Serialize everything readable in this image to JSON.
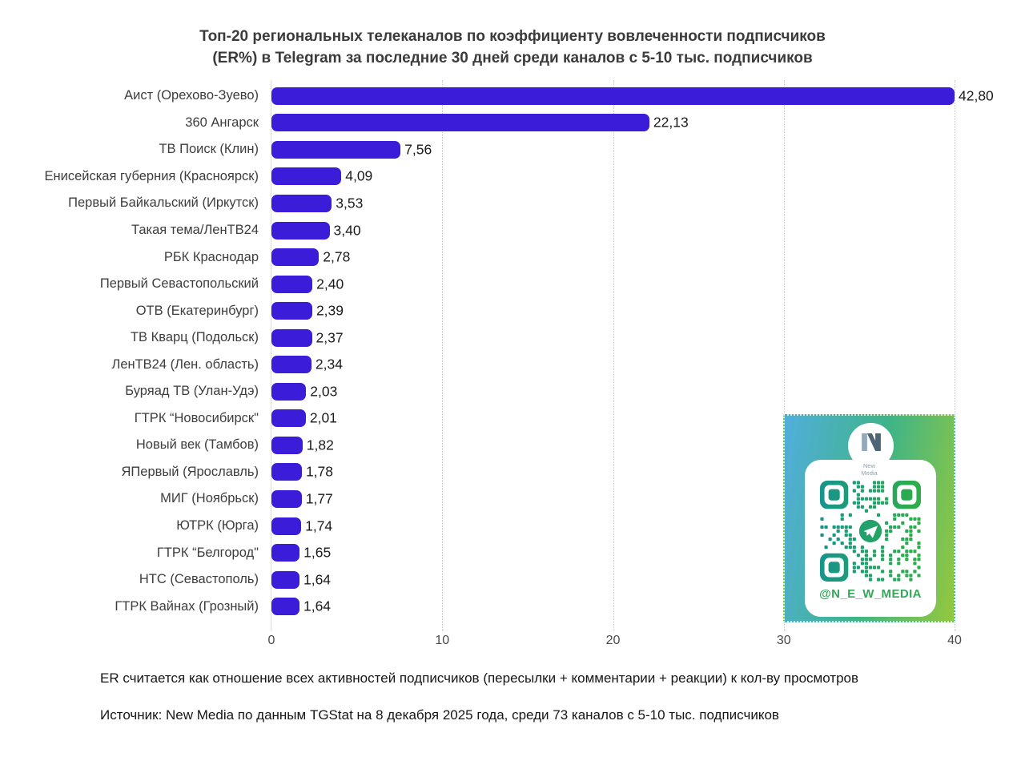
{
  "title": {
    "line1": "Топ-20 региональных телеканалов по коэффициенту вовлеченности подписчиков",
    "line2": "(ER%) в Telegram за последние 30 дней среди каналов с 5-10 тыс. подписчиков"
  },
  "chart_data": {
    "type": "bar",
    "orientation": "horizontal",
    "title": "Топ-20 региональных телеканалов по коэффициенту вовлеченности подписчиков (ER%) в Telegram за последние 30 дней среди каналов с 5-10 тыс. подписчиков",
    "categories": [
      "Аист (Орехово-Зуево)",
      "360 Ангарск",
      "ТВ Поиск (Клин)",
      "Енисейская губерния (Красноярск)",
      "Первый Байкальский (Иркутск)",
      "Такая тема/ЛенТВ24",
      "РБК Краснодар",
      "Первый Севастопольский",
      "ОТВ (Екатеринбург)",
      "ТВ Кварц (Подольск)",
      "ЛенТВ24 (Лен. область)",
      "Буряад ТВ (Улан-Удэ)",
      "ГТРК “Новосибирск\"",
      "Новый век (Тамбов)",
      "ЯПервый (Ярославль)",
      "МИГ (Ноябрьск)",
      "ЮТРК (Юрга)",
      "ГТРК “Белгород\"",
      "НТС (Севастополь)",
      "ГТРК Вайнах (Грозный)"
    ],
    "values": [
      42.8,
      22.13,
      7.56,
      4.09,
      3.53,
      3.4,
      2.78,
      2.4,
      2.39,
      2.37,
      2.34,
      2.03,
      2.01,
      1.82,
      1.78,
      1.77,
      1.74,
      1.65,
      1.64,
      1.64
    ],
    "value_labels": [
      "42,80",
      "22,13",
      "7,56",
      "4,09",
      "3,53",
      "3,40",
      "2,78",
      "2,40",
      "2,39",
      "2,37",
      "2,34",
      "2,03",
      "2,01",
      "1,82",
      "1,78",
      "1,77",
      "1,74",
      "1,65",
      "1,64",
      "1,64"
    ],
    "xlim": [
      0,
      40
    ],
    "x_ticks": [
      0,
      10,
      20,
      30,
      40
    ],
    "x_tick_labels": [
      "0",
      "10",
      "20",
      "30",
      "40"
    ],
    "grid": "vertical-dotted",
    "legend": "none",
    "bar_color": "#3B1CD9"
  },
  "footnotes": {
    "er_definition": "ER считается как отношение всех активностей подписчиков (пересылки + комментарии + реакции) к кол-ву просмотров",
    "source": "Источник: New Media по данным TGStat на 8 декабря 2025 года, среди 73 каналов с 5-10 тыс. подписчиков"
  },
  "qr_card": {
    "logo_line1": "New",
    "logo_line2": "Media",
    "handle": "@N_E_W_MEDIA"
  },
  "colors": {
    "bar": "#3B1CD9",
    "title_text": "#3B3B3B",
    "category_text": "#3D3D3D",
    "value_text": "#1B1B1B",
    "tick_text": "#4A4A4A",
    "gridline": "#C9C9C9",
    "qr_teal": "#17948C",
    "qr_green": "#2FAE49",
    "handle_green": "#35A75A"
  }
}
